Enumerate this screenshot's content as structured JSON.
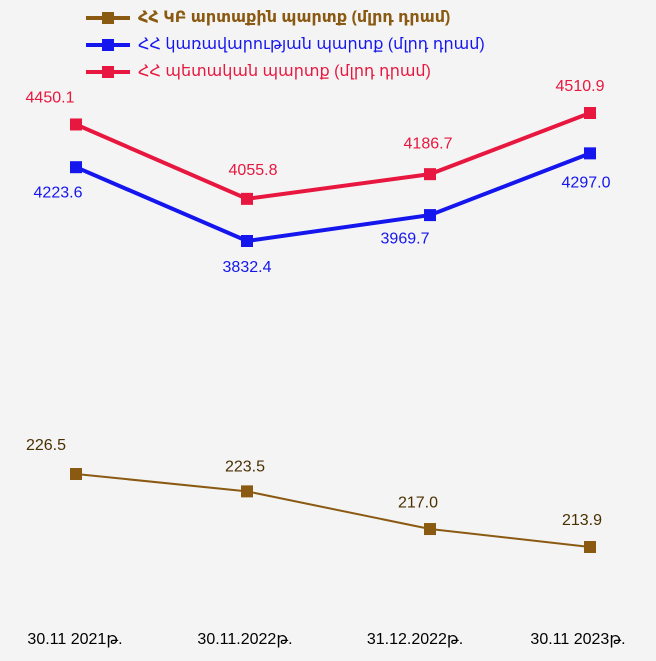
{
  "chart_data": {
    "type": "line",
    "categories": [
      "30.11 2021թ.",
      "30.11.2022թ.",
      "31.12.2022թ.",
      "30.11 2023թ."
    ],
    "series": [
      {
        "name": "ՀՀ ԿԲ արտաքին պարտք (մլրդ դրամ)",
        "color": "#8b5a12",
        "axis": "y2",
        "values": [
          226.5,
          223.5,
          217.0,
          213.9
        ],
        "value_labels": [
          "226.5",
          "223.5",
          "217.0",
          "213.9"
        ]
      },
      {
        "name": "ՀՀ կառավարության պարտք (մլրդ դրամ)",
        "color": "#1515ee",
        "values": [
          4223.6,
          3832.4,
          3969.7,
          4297.0
        ],
        "value_labels": [
          "4223.6",
          "3832.4",
          "3969.7",
          "4297.0"
        ]
      },
      {
        "name": "ՀՀ պետական պարտք (մլրդ դրամ)",
        "color": "#e8173f",
        "values": [
          4450.1,
          4055.8,
          4186.7,
          4510.9
        ],
        "value_labels": [
          "4450.1",
          "4055.8",
          "4186.7",
          "4510.9"
        ]
      }
    ]
  }
}
